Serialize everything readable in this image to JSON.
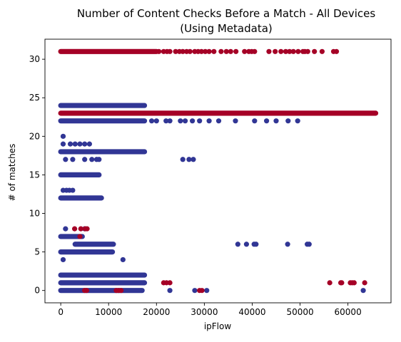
{
  "chart_data": {
    "type": "scatter",
    "title": "Number of Content Checks Before a Match - All Devices",
    "subtitle": "(Using Metadata)",
    "xlabel": "ipFlow",
    "ylabel": "# of matches",
    "xlim": [
      -3300,
      69000
    ],
    "ylim": [
      -1.6,
      32.6
    ],
    "x_ticks": [
      0,
      10000,
      20000,
      30000,
      40000,
      50000,
      60000
    ],
    "y_ticks": [
      0,
      5,
      10,
      15,
      20,
      25,
      30
    ],
    "grid": false,
    "legend": "none",
    "colors": {
      "blue": "#313695",
      "red": "#a50026"
    },
    "series": [
      {
        "color": "#313695",
        "segments": [
          {
            "y": 24,
            "x": [
              0,
              17500
            ]
          },
          {
            "y": 22,
            "x": [
              0,
              17500
            ]
          },
          {
            "y": 18,
            "x": [
              0,
              17500
            ]
          },
          {
            "y": 15,
            "x": [
              0,
              8000
            ]
          },
          {
            "y": 12,
            "x": [
              0,
              8500
            ]
          },
          {
            "y": 7,
            "x": [
              0,
              4500
            ]
          },
          {
            "y": 6,
            "x": [
              3000,
              11000
            ]
          },
          {
            "y": 5,
            "x": [
              0,
              10800
            ]
          },
          {
            "y": 2,
            "x": [
              0,
              17500
            ]
          },
          {
            "y": 1,
            "x": [
              0,
              17500
            ]
          },
          {
            "y": 0,
            "x": [
              0,
              17000
            ]
          }
        ],
        "points": [
          [
            19000,
            22
          ],
          [
            20000,
            22
          ],
          [
            22000,
            22
          ],
          [
            22800,
            22
          ],
          [
            25000,
            22
          ],
          [
            26000,
            22
          ],
          [
            27500,
            22
          ],
          [
            29000,
            22
          ],
          [
            31000,
            22
          ],
          [
            33000,
            22
          ],
          [
            36500,
            22
          ],
          [
            40500,
            22
          ],
          [
            43000,
            22
          ],
          [
            45000,
            22
          ],
          [
            47500,
            22
          ],
          [
            49500,
            22
          ],
          [
            500,
            20
          ],
          [
            500,
            19
          ],
          [
            2000,
            19
          ],
          [
            3000,
            19
          ],
          [
            4000,
            19
          ],
          [
            5000,
            19
          ],
          [
            6000,
            19
          ],
          [
            25500,
            17
          ],
          [
            26800,
            17
          ],
          [
            27700,
            17
          ],
          [
            1000,
            17
          ],
          [
            2500,
            17
          ],
          [
            5000,
            17
          ],
          [
            6500,
            17
          ],
          [
            7500,
            17
          ],
          [
            8000,
            17
          ],
          [
            500,
            13
          ],
          [
            1200,
            13
          ],
          [
            1800,
            13
          ],
          [
            2500,
            13
          ],
          [
            1000,
            8
          ],
          [
            5000,
            8
          ],
          [
            13000,
            4
          ],
          [
            500,
            4
          ],
          [
            37000,
            6
          ],
          [
            38800,
            6
          ],
          [
            40400,
            6
          ],
          [
            40800,
            6
          ],
          [
            47400,
            6
          ],
          [
            51500,
            6
          ],
          [
            51900,
            6
          ],
          [
            22800,
            0
          ],
          [
            28000,
            0
          ],
          [
            30500,
            0
          ],
          [
            63200,
            0
          ]
        ]
      },
      {
        "color": "#a50026",
        "segments": [
          {
            "y": 31,
            "x": [
              0,
              20000
            ]
          },
          {
            "y": 23,
            "x": [
              0,
              65800
            ]
          }
        ],
        "points": [
          [
            20500,
            31
          ],
          [
            21500,
            31
          ],
          [
            22200,
            31
          ],
          [
            22800,
            31
          ],
          [
            24000,
            31
          ],
          [
            24800,
            31
          ],
          [
            25500,
            31
          ],
          [
            26300,
            31
          ],
          [
            27000,
            31
          ],
          [
            28000,
            31
          ],
          [
            28700,
            31
          ],
          [
            29400,
            31
          ],
          [
            30200,
            31
          ],
          [
            31000,
            31
          ],
          [
            32000,
            31
          ],
          [
            33500,
            31
          ],
          [
            34600,
            31
          ],
          [
            35500,
            31
          ],
          [
            36600,
            31
          ],
          [
            38400,
            31
          ],
          [
            39300,
            31
          ],
          [
            39900,
            31
          ],
          [
            40500,
            31
          ],
          [
            43500,
            31
          ],
          [
            44800,
            31
          ],
          [
            46000,
            31
          ],
          [
            47000,
            31
          ],
          [
            47800,
            31
          ],
          [
            48600,
            31
          ],
          [
            49600,
            31
          ],
          [
            50600,
            31
          ],
          [
            51000,
            31
          ],
          [
            51600,
            31
          ],
          [
            53000,
            31
          ],
          [
            54600,
            31
          ],
          [
            57000,
            31
          ],
          [
            57600,
            31
          ],
          [
            2900,
            8
          ],
          [
            4200,
            8
          ],
          [
            5100,
            8
          ],
          [
            5500,
            8
          ],
          [
            4000,
            7
          ],
          [
            21500,
            1
          ],
          [
            22100,
            1
          ],
          [
            22800,
            1
          ],
          [
            56200,
            1
          ],
          [
            58500,
            1
          ],
          [
            58700,
            1
          ],
          [
            60500,
            1
          ],
          [
            60900,
            1
          ],
          [
            61300,
            1
          ],
          [
            63500,
            1
          ],
          [
            5000,
            0
          ],
          [
            5400,
            0
          ],
          [
            11600,
            0
          ],
          [
            12100,
            0
          ],
          [
            12600,
            0
          ],
          [
            29000,
            0
          ],
          [
            29500,
            0
          ]
        ]
      }
    ]
  }
}
